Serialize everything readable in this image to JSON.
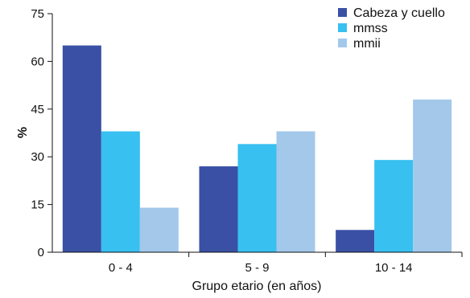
{
  "chart_data": {
    "type": "bar",
    "xlabel": "Grupo etario (en años)",
    "ylabel": "%",
    "ylim": [
      0,
      75
    ],
    "yticks": [
      "0",
      "15",
      "30",
      "45",
      "60",
      "75"
    ],
    "categories": [
      "0 - 4",
      "5 - 9",
      "10 - 14"
    ],
    "series": [
      {
        "name": "Cabeza y cuello",
        "values": [
          65,
          27,
          7
        ],
        "color": "#3a50a5"
      },
      {
        "name": "mmss",
        "values": [
          38,
          34,
          29
        ],
        "color": "#37c0f0"
      },
      {
        "name": "mmii",
        "values": [
          14,
          38,
          48
        ],
        "color": "#a3c8ea"
      }
    ],
    "legend_position": "top-right",
    "grid": false
  }
}
